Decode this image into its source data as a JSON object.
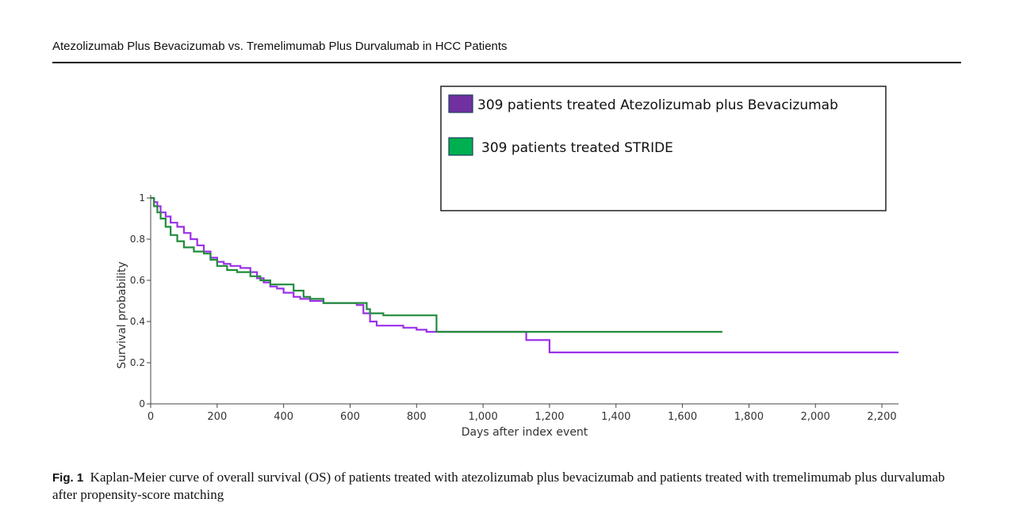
{
  "header": {
    "running_title": "Atezolizumab Plus Bevacizumab vs. Tremelimumab Plus Durvalumab in HCC Patients"
  },
  "caption": {
    "label": "Fig. 1",
    "text": "Kaplan-Meier curve of overall survival (OS) of patients treated with atezolizumab plus bevacizumab and patients treated with tremelimumab plus durvalumab after propensity-score matching"
  },
  "chart_data": {
    "type": "line",
    "step": true,
    "xlabel": "Days after index event",
    "ylabel": "Survival probability",
    "xlim": [
      0,
      2250
    ],
    "ylim": [
      0,
      1
    ],
    "x_ticks": [
      0,
      200,
      400,
      600,
      800,
      1000,
      1200,
      1400,
      1600,
      1800,
      2000,
      2200
    ],
    "x_tick_labels": [
      "0",
      "200",
      "400",
      "600",
      "800",
      "1,000",
      "1,200",
      "1,400",
      "1,600",
      "1,800",
      "2,000",
      "2,200"
    ],
    "y_ticks": [
      0,
      0.2,
      0.4,
      0.6,
      0.8,
      1
    ],
    "y_tick_labels": [
      "0",
      "0.2",
      "0.4",
      "0.6",
      "0.8",
      "1"
    ],
    "grid": false,
    "legend_position": "top-right",
    "series": [
      {
        "name": "309 patients treated Atezolizumab plus Bevacizumab",
        "color": "#9b30e8",
        "legend_color": "#7030a0",
        "x": [
          0,
          10,
          20,
          30,
          45,
          60,
          80,
          100,
          120,
          140,
          160,
          180,
          200,
          220,
          240,
          270,
          300,
          320,
          340,
          360,
          380,
          400,
          430,
          450,
          480,
          520,
          560,
          600,
          620,
          640,
          660,
          680,
          700,
          760,
          800,
          830,
          860,
          1000,
          1130,
          1200,
          2250
        ],
        "y": [
          1,
          0.98,
          0.96,
          0.93,
          0.91,
          0.88,
          0.86,
          0.83,
          0.8,
          0.77,
          0.74,
          0.71,
          0.69,
          0.68,
          0.67,
          0.66,
          0.64,
          0.61,
          0.59,
          0.57,
          0.56,
          0.54,
          0.52,
          0.51,
          0.5,
          0.49,
          0.49,
          0.49,
          0.48,
          0.44,
          0.4,
          0.38,
          0.38,
          0.37,
          0.36,
          0.35,
          0.35,
          0.35,
          0.31,
          0.25,
          0.25
        ]
      },
      {
        "name": "309 patients treated STRIDE",
        "color": "#228b3b",
        "legend_color": "#00b050",
        "x": [
          0,
          10,
          20,
          30,
          45,
          60,
          80,
          100,
          130,
          160,
          180,
          200,
          230,
          260,
          300,
          330,
          360,
          400,
          430,
          460,
          480,
          520,
          560,
          600,
          640,
          650,
          660,
          700,
          860,
          1000,
          1200,
          1720
        ],
        "y": [
          1,
          0.96,
          0.93,
          0.9,
          0.86,
          0.82,
          0.79,
          0.76,
          0.74,
          0.73,
          0.7,
          0.67,
          0.65,
          0.64,
          0.62,
          0.6,
          0.58,
          0.58,
          0.55,
          0.52,
          0.51,
          0.49,
          0.49,
          0.49,
          0.49,
          0.46,
          0.44,
          0.43,
          0.35,
          0.35,
          0.35,
          0.35
        ]
      }
    ]
  }
}
